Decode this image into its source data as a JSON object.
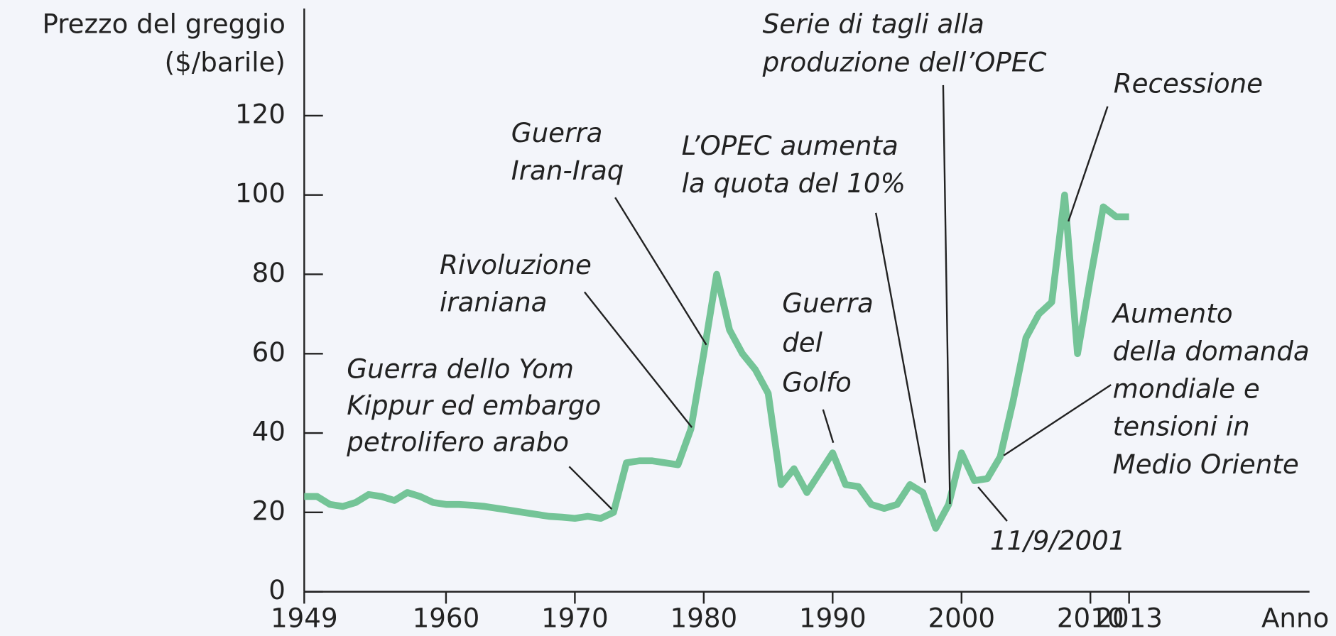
{
  "chart_data": {
    "type": "line",
    "y_label_lines": [
      "Prezzo del greggio",
      "($/barile)"
    ],
    "x_label": "Anno",
    "x": [
      1949,
      1950,
      1951,
      1952,
      1953,
      1954,
      1955,
      1956,
      1957,
      1958,
      1959,
      1960,
      1961,
      1962,
      1963,
      1964,
      1965,
      1966,
      1967,
      1968,
      1969,
      1970,
      1971,
      1972,
      1973,
      1974,
      1975,
      1976,
      1977,
      1978,
      1979,
      1980,
      1981,
      1982,
      1983,
      1984,
      1985,
      1986,
      1987,
      1988,
      1989,
      1990,
      1991,
      1992,
      1993,
      1994,
      1995,
      1996,
      1997,
      1998,
      1999,
      2000,
      2001,
      2002,
      2003,
      2004,
      2005,
      2006,
      2007,
      2008,
      2009,
      2010,
      2011,
      2012,
      2013
    ],
    "series": [
      {
        "name": "Prezzo del greggio",
        "color": "#74c497",
        "values": [
          24,
          24,
          22,
          21.5,
          22.5,
          24.5,
          24,
          23,
          25,
          24,
          22.5,
          22,
          22,
          21.8,
          21.5,
          21,
          20.5,
          20,
          19.5,
          19,
          18.8,
          18.5,
          19,
          18.5,
          20,
          32.5,
          33,
          33,
          32.5,
          32,
          41,
          60,
          80,
          66,
          60,
          56,
          50,
          27,
          31,
          25,
          30,
          35,
          27,
          26.5,
          22,
          21,
          22,
          27,
          25,
          16,
          22,
          35,
          28,
          28.5,
          34,
          48,
          64,
          70,
          73,
          100,
          60,
          79,
          97,
          94.5,
          94.5
        ]
      }
    ],
    "xlim": [
      1949,
      2027
    ],
    "xticks": [
      1949,
      1960,
      1970,
      1980,
      1990,
      2000,
      2010,
      2013
    ],
    "ylim": [
      0,
      147
    ],
    "yticks": [
      0,
      20,
      40,
      60,
      80,
      100,
      120
    ],
    "annotations": [
      {
        "lines": [
          "Guerra dello Yom",
          "Kippur ed embargo",
          "petrolifero arabo"
        ]
      },
      {
        "lines": [
          "Rivoluzione",
          "iraniana"
        ]
      },
      {
        "lines": [
          "Guerra",
          "Iran-Iraq"
        ]
      },
      {
        "lines": [
          "L’OPEC aumenta",
          "la quota del 10%"
        ]
      },
      {
        "lines": [
          "Serie di tagli alla",
          "produzione dell’OPEC"
        ]
      },
      {
        "lines": [
          "Recessione"
        ]
      },
      {
        "lines": [
          "Guerra",
          "del",
          "Golfo"
        ]
      },
      {
        "lines": [
          "Aumento",
          "della domanda",
          "mondiale e",
          "tensioni in",
          "Medio Oriente"
        ]
      },
      {
        "lines": [
          "11/9/2001"
        ]
      }
    ]
  }
}
